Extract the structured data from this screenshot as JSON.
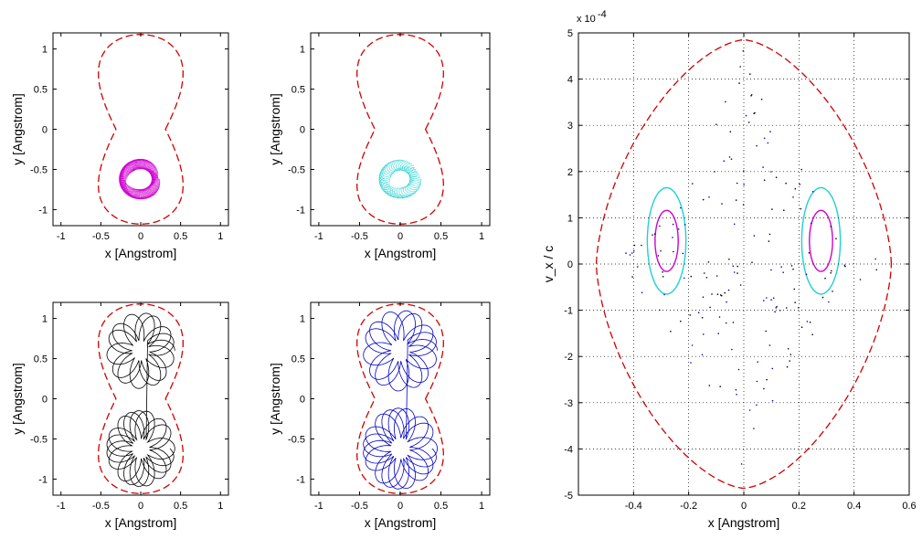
{
  "chart_data": [
    {
      "id": "a",
      "type": "line",
      "xlabel": "x [Angstrom]",
      "ylabel": "y [Angstrom]",
      "xlim": [
        -1.1,
        1.1
      ],
      "ylim": [
        -1.2,
        1.2
      ],
      "xticks": [
        "-1",
        "-0.5",
        "0",
        "0.5",
        "1"
      ],
      "yticks": [
        "1",
        "0.5",
        "0",
        "-0.5",
        "-1"
      ],
      "series": [
        {
          "name": "boundary",
          "color": "#d00000",
          "style": "dashed",
          "shape": "double-well",
          "rMin": 0.2,
          "rMax": 0.58
        },
        {
          "name": "trajectory",
          "color": "#d000d0",
          "kind": "annulus",
          "cx": 0.0,
          "cy": -0.62,
          "rInner": 0.14,
          "rOuter": 0.27,
          "turns": 18,
          "dotted": false
        }
      ]
    },
    {
      "id": "b",
      "type": "line",
      "xlabel": "x [Angstrom]",
      "ylabel": "y [Angstrom]",
      "xlim": [
        -1.1,
        1.1
      ],
      "ylim": [
        -1.2,
        1.2
      ],
      "xticks": [
        "-1",
        "-0.5",
        "0",
        "0.5",
        "1"
      ],
      "yticks": [
        "1",
        "0.5",
        "0",
        "-0.5",
        "-1"
      ],
      "series": [
        {
          "name": "boundary",
          "color": "#d00000",
          "style": "dashed",
          "shape": "double-well",
          "rMin": 0.2,
          "rMax": 0.58
        },
        {
          "name": "trajectory",
          "color": "#20d0d0",
          "kind": "annulus",
          "cx": 0.0,
          "cy": -0.62,
          "rInner": 0.12,
          "rOuter": 0.26,
          "turns": 22,
          "dotted": true
        }
      ]
    },
    {
      "id": "c",
      "type": "line",
      "xlabel": "x [Angstrom]",
      "ylabel": "y [Angstrom]",
      "xlim": [
        -1.1,
        1.1
      ],
      "ylim": [
        -1.2,
        1.2
      ],
      "xticks": [
        "-1",
        "-0.5",
        "0",
        "0.5",
        "1"
      ],
      "yticks": [
        "1",
        "0.5",
        "0",
        "-0.5",
        "-1"
      ],
      "series": [
        {
          "name": "boundary",
          "color": "#d00000",
          "style": "dashed",
          "shape": "double-well",
          "rMin": 0.2,
          "rMax": 0.58
        },
        {
          "name": "trajectory",
          "color": "#000000",
          "kind": "rosette",
          "topCenter": [
            0.0,
            0.6
          ],
          "bottomCenter": [
            0.0,
            -0.62
          ],
          "radius": 0.45
        }
      ]
    },
    {
      "id": "d",
      "type": "line",
      "xlabel": "x [Angstrom]",
      "ylabel": "y [Angstrom]",
      "xlim": [
        -1.1,
        1.1
      ],
      "ylim": [
        -1.2,
        1.2
      ],
      "xticks": [
        "-1",
        "-0.5",
        "0",
        "0.5",
        "1"
      ],
      "yticks": [
        "1",
        "0.5",
        "0",
        "-0.5",
        "-1"
      ],
      "series": [
        {
          "name": "boundary",
          "color": "#d00000",
          "style": "dashed",
          "shape": "double-well",
          "rMin": 0.2,
          "rMax": 0.58
        },
        {
          "name": "trajectory",
          "color": "#0000c0",
          "kind": "rosette",
          "topCenter": [
            0.0,
            0.6
          ],
          "bottomCenter": [
            0.0,
            -0.62
          ],
          "radius": 0.48
        }
      ]
    },
    {
      "id": "e",
      "type": "scatter",
      "title": "",
      "xlabel": "x [Angstrom]",
      "ylabel": "v_x / c",
      "yscale_label": "x 10",
      "yscale_exponent": "-4",
      "xlim": [
        -0.6,
        0.6
      ],
      "ylim": [
        -5,
        5
      ],
      "grid": true,
      "xticks": [
        "-0.4",
        "-0.2",
        "0",
        "0.2",
        "0.4",
        "0.6"
      ],
      "yticks": [
        "5",
        "4",
        "3",
        "2",
        "1",
        "0",
        "-1",
        "-2",
        "-3",
        "-4",
        "-5"
      ],
      "series": [
        {
          "name": "energy boundary",
          "color": "#d00000",
          "style": "dashed",
          "kind": "diamond",
          "xHalfWidth": 0.535,
          "yHalfHeight": 4.85
        },
        {
          "name": "cyan islands",
          "color": "#20d0d0",
          "kind": "islands",
          "centers": [
            [
              -0.28,
              0.5
            ],
            [
              0.28,
              0.5
            ]
          ],
          "rx": 0.07,
          "ry": 1.15
        },
        {
          "name": "magenta islands",
          "color": "#d000d0",
          "kind": "islands",
          "centers": [
            [
              -0.28,
              0.5
            ],
            [
              0.28,
              0.5
            ]
          ],
          "rx": 0.042,
          "ry": 0.66
        },
        {
          "name": "chaotic sea (black)",
          "color": "#000000",
          "kind": "scatter",
          "count": 220
        },
        {
          "name": "chaotic sea (blue)",
          "color": "#0000c0",
          "kind": "scatter",
          "count": 220
        }
      ]
    }
  ]
}
